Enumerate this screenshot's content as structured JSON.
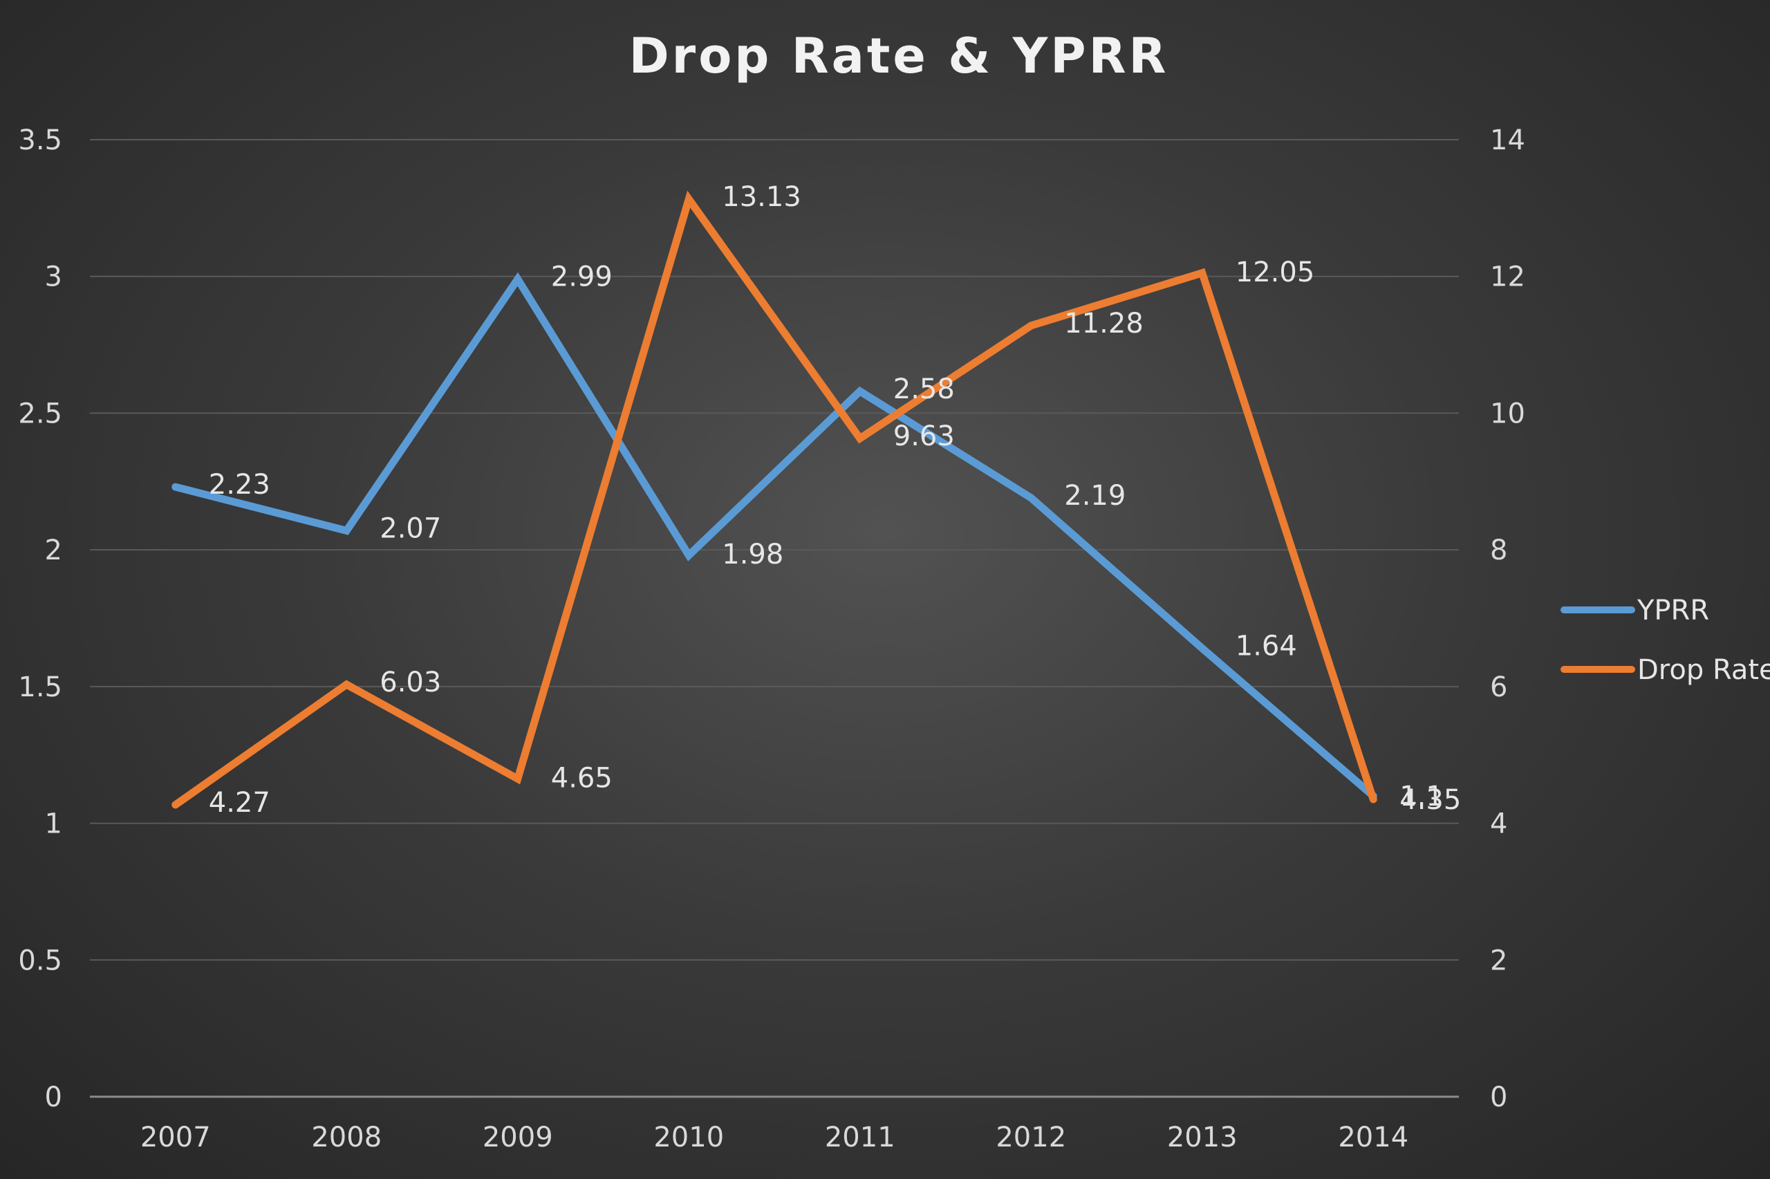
{
  "chart_data": {
    "type": "line",
    "title": "Drop Rate & YPRR",
    "categories": [
      "2007",
      "2008",
      "2009",
      "2010",
      "2011",
      "2012",
      "2013",
      "2014"
    ],
    "series": [
      {
        "name": "YPRR",
        "axis": "left",
        "color": "#5b9bd5",
        "values": [
          2.23,
          2.07,
          2.99,
          1.98,
          2.58,
          2.19,
          1.64,
          1.1
        ],
        "labels": [
          "2.23",
          "2.07",
          "2.99",
          "1.98",
          "2.58",
          "2.19",
          "1.64",
          "1.1"
        ]
      },
      {
        "name": "Drop Rate",
        "axis": "right",
        "color": "#ed7d31",
        "values": [
          4.27,
          6.03,
          4.65,
          13.13,
          9.63,
          11.28,
          12.05,
          4.35
        ],
        "labels": [
          "4.27",
          "6.03",
          "4.65",
          "13.13",
          "9.63",
          "11.28",
          "12.05",
          "4.35"
        ]
      }
    ],
    "y_left": {
      "range": [
        0,
        3.5
      ],
      "ticks": [
        "0",
        "0.5",
        "1",
        "1.5",
        "2",
        "2.5",
        "3",
        "3.5"
      ]
    },
    "y_right": {
      "range": [
        0,
        14
      ],
      "ticks": [
        "0",
        "2",
        "4",
        "6",
        "8",
        "10",
        "12",
        "14"
      ]
    },
    "grid": true,
    "legend_position": "right"
  }
}
